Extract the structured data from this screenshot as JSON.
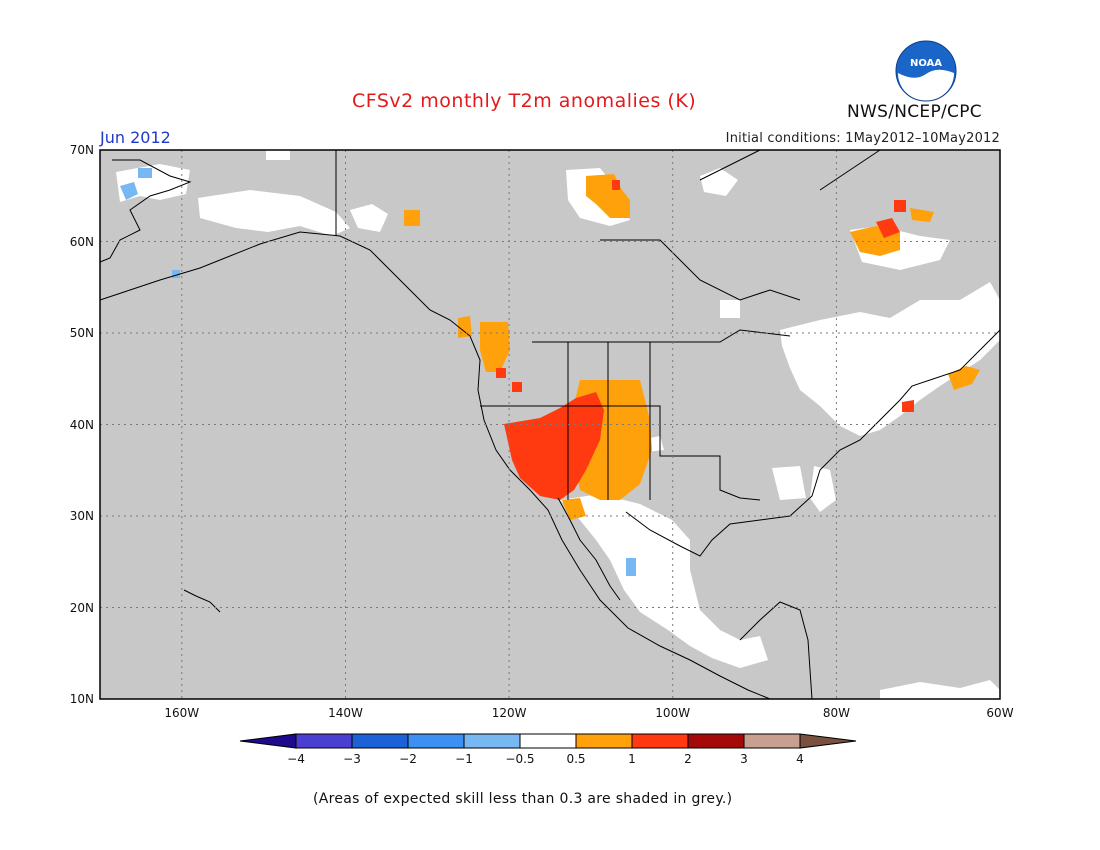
{
  "title": "CFSv2 monthly T2m anomalies (K)",
  "valid_month": "Jun 2012",
  "initial_conditions": "Initial conditions: 1May2012–10May2012",
  "agency": "NWS/NCEP/CPC",
  "logo_text": "NOAA",
  "footnote": "(Areas of expected skill less than 0.3 are shaded in grey.)",
  "map": {
    "lon_range": [
      -170,
      -60
    ],
    "lat_range": [
      10,
      70
    ],
    "lat_labels": [
      "70N",
      "60N",
      "50N",
      "40N",
      "30N",
      "20N",
      "10N"
    ],
    "lon_labels": [
      "160W",
      "140W",
      "120W",
      "100W",
      "80W",
      "60W"
    ],
    "no_skill_color": "#c8c8c8",
    "land_outline_color": "#000000"
  },
  "colorbar": {
    "ticks": [
      "−4",
      "−3",
      "−2",
      "−1",
      "−0.5",
      "0.5",
      "1",
      "2",
      "3",
      "4"
    ],
    "colors": [
      "#1d0a8c",
      "#4b3fd2",
      "#1c62d6",
      "#3d8ff0",
      "#78b8f2",
      "#ffffff",
      "#ffa10a",
      "#ff3a10",
      "#a50a0a",
      "#c8a090",
      "#7a5040"
    ]
  }
}
